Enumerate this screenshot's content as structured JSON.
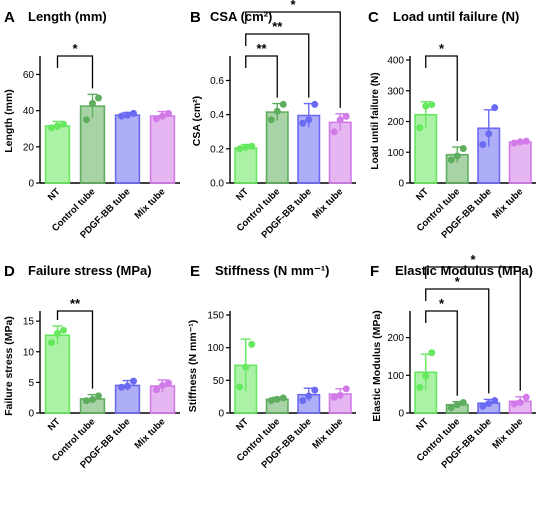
{
  "colors": {
    "NT": "#66e85f",
    "Control tube": "#5fae5f",
    "PDGF-BB tube": "#6a6af2",
    "Mix tube": "#d27ae8"
  },
  "categories": [
    "NT",
    "Control tube",
    "PDGF-BB tube",
    "Mix tube"
  ],
  "chart_data": [
    {
      "type": "bar",
      "panel": "A",
      "title": "Length (mm)",
      "ylabel": "Length (mm)",
      "categories": [
        "NT",
        "Control tube",
        "PDGF-BB tube",
        "Mix tube"
      ],
      "values": [
        31.5,
        42.5,
        37.5,
        37
      ],
      "errors": [
        2.5,
        6.5,
        1.5,
        2.5
      ],
      "points": [
        [
          30.5,
          31.5,
          32.5
        ],
        [
          35,
          44,
          47
        ],
        [
          37,
          37.5,
          38.5
        ],
        [
          35.5,
          37,
          38.5
        ]
      ],
      "ylim": [
        0,
        68
      ],
      "yticks": [
        0,
        20,
        40,
        60
      ],
      "significance": [
        {
          "from": "NT",
          "to": "Control tube",
          "label": "*"
        }
      ]
    },
    {
      "type": "bar",
      "panel": "B",
      "title": "CSA (cm²)",
      "ylabel": "CSA (cm²)",
      "categories": [
        "NT",
        "Control tube",
        "PDGF-BB tube",
        "Mix tube"
      ],
      "values": [
        0.205,
        0.415,
        0.395,
        0.355
      ],
      "errors": [
        0.02,
        0.05,
        0.07,
        0.05
      ],
      "points": [
        [
          0.2,
          0.21,
          0.215
        ],
        [
          0.37,
          0.42,
          0.46
        ],
        [
          0.35,
          0.37,
          0.46
        ],
        [
          0.3,
          0.37,
          0.39
        ]
      ],
      "ylim": [
        0,
        0.72
      ],
      "yticks": [
        0.0,
        0.2,
        0.4,
        0.6
      ],
      "significance": [
        {
          "from": "NT",
          "to": "Control tube",
          "label": "**"
        },
        {
          "from": "NT",
          "to": "PDGF-BB tube",
          "label": "**"
        },
        {
          "from": "NT",
          "to": "Mix tube",
          "label": "*"
        }
      ]
    },
    {
      "type": "bar",
      "panel": "C",
      "title": "Load until failure (N)",
      "ylabel": "Load until failure (N)",
      "categories": [
        "NT",
        "Control tube",
        "PDGF-BB tube",
        "Mix tube"
      ],
      "values": [
        222,
        92,
        178,
        133
      ],
      "errors": [
        42,
        25,
        60,
        4
      ],
      "points": [
        [
          180,
          250,
          255
        ],
        [
          75,
          88,
          112
        ],
        [
          125,
          160,
          245
        ],
        [
          130,
          134,
          136
        ]
      ],
      "ylim": [
        0,
        400
      ],
      "yticks": [
        0,
        100,
        200,
        300,
        400
      ],
      "significance": [
        {
          "from": "NT",
          "to": "Control tube",
          "label": "*"
        }
      ]
    },
    {
      "type": "bar",
      "panel": "D",
      "title": "Failure stress (MPa)",
      "ylabel": "Failure stress (MPa)",
      "categories": [
        "NT",
        "Control tube",
        "PDGF-BB tube",
        "Mix tube"
      ],
      "values": [
        12.7,
        2.3,
        4.5,
        4.4
      ],
      "errors": [
        1.5,
        0.7,
        0.8,
        1.0
      ],
      "points": [
        [
          11.5,
          13.0,
          13.5
        ],
        [
          2.0,
          2.2,
          2.8
        ],
        [
          4.2,
          4.4,
          5.2
        ],
        [
          3.8,
          4.5,
          4.9
        ]
      ],
      "ylim": [
        0,
        16
      ],
      "yticks": [
        0,
        5,
        10,
        15
      ],
      "significance": [
        {
          "from": "NT",
          "to": "Control tube",
          "label": "**"
        }
      ]
    },
    {
      "type": "bar",
      "panel": "E",
      "title": "Stiffness (N mm⁻¹)",
      "ylabel": "Stiffness (N mm⁻¹)",
      "categories": [
        "NT",
        "Control tube",
        "PDGF-BB tube",
        "Mix tube"
      ],
      "values": [
        73,
        21,
        28,
        29
      ],
      "errors": [
        40,
        3,
        10,
        8
      ],
      "points": [
        [
          40,
          70,
          105
        ],
        [
          19,
          21,
          23
        ],
        [
          19,
          26,
          35
        ],
        [
          24,
          27,
          37
        ]
      ],
      "ylim": [
        0,
        150
      ],
      "yticks": [
        0,
        50,
        100,
        150
      ],
      "significance": []
    },
    {
      "type": "bar",
      "panel": "F",
      "title": "Elastic Modulus (MPa)",
      "ylabel": "Elastic Modulus (MPa)",
      "categories": [
        "NT",
        "Control tube",
        "PDGF-BB tube",
        "Mix tube"
      ],
      "values": [
        108,
        22,
        26,
        31
      ],
      "errors": [
        48,
        8,
        10,
        12
      ],
      "points": [
        [
          68,
          98,
          160
        ],
        [
          14,
          22,
          28
        ],
        [
          18,
          25,
          33
        ],
        [
          24,
          28,
          42
        ]
      ],
      "ylim": [
        0,
        260
      ],
      "yticks": [
        0,
        100,
        200
      ],
      "significance": [
        {
          "from": "NT",
          "to": "Control tube",
          "label": "*"
        },
        {
          "from": "NT",
          "to": "PDGF-BB tube",
          "label": "*"
        },
        {
          "from": "NT",
          "to": "Mix tube",
          "label": "*"
        }
      ]
    }
  ]
}
